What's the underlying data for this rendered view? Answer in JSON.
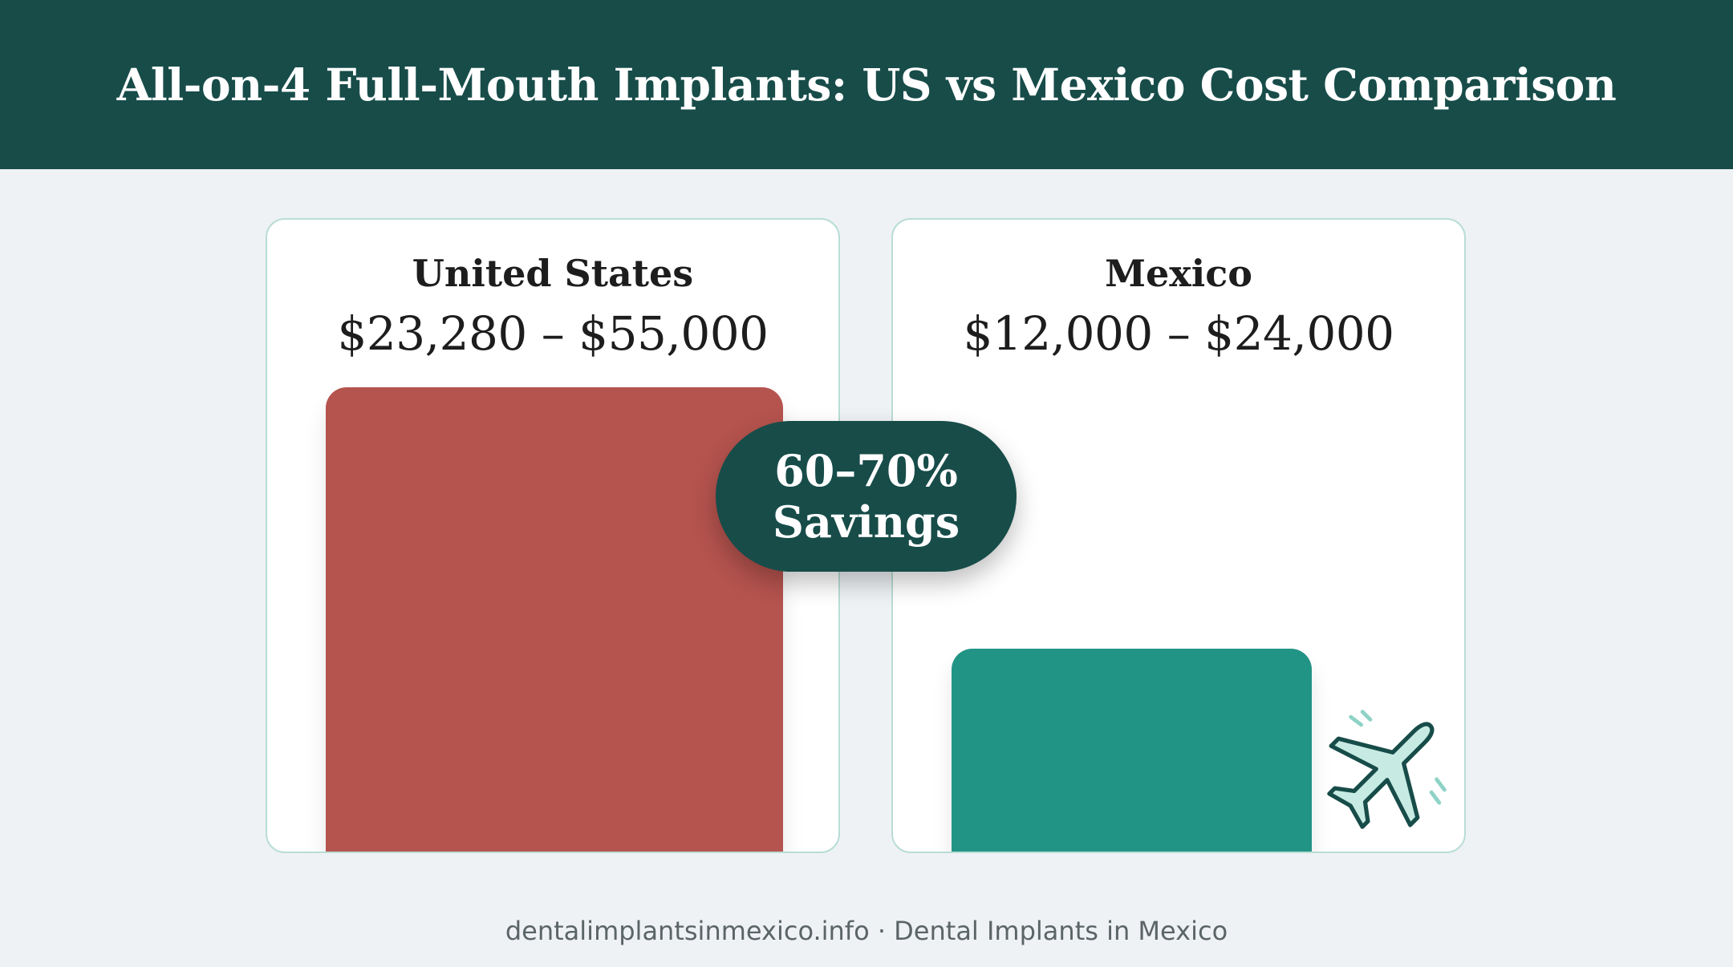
{
  "header": {
    "title": "All-on-4 Full-Mouth Implants: US vs Mexico Cost Comparison"
  },
  "badge": {
    "line1": "60–70%",
    "line2": "Savings"
  },
  "footer": {
    "text": "dentalimplantsinmexico.info · Dental Implants in Mexico"
  },
  "icons": {
    "plane": "airplane-icon"
  },
  "colors": {
    "header": "#174c49",
    "us_bar": "#b5534e",
    "mexico_bar": "#229486",
    "badge": "#174c49"
  },
  "chart_data": {
    "type": "bar",
    "categories": [
      "United States",
      "Mexico"
    ],
    "ranges": [
      "$23,280 – $55,000",
      "$12,000 – $24,000"
    ],
    "values": [
      55000,
      24000
    ],
    "ylim": [
      0,
      55000
    ],
    "grid": false,
    "legend": "none"
  }
}
